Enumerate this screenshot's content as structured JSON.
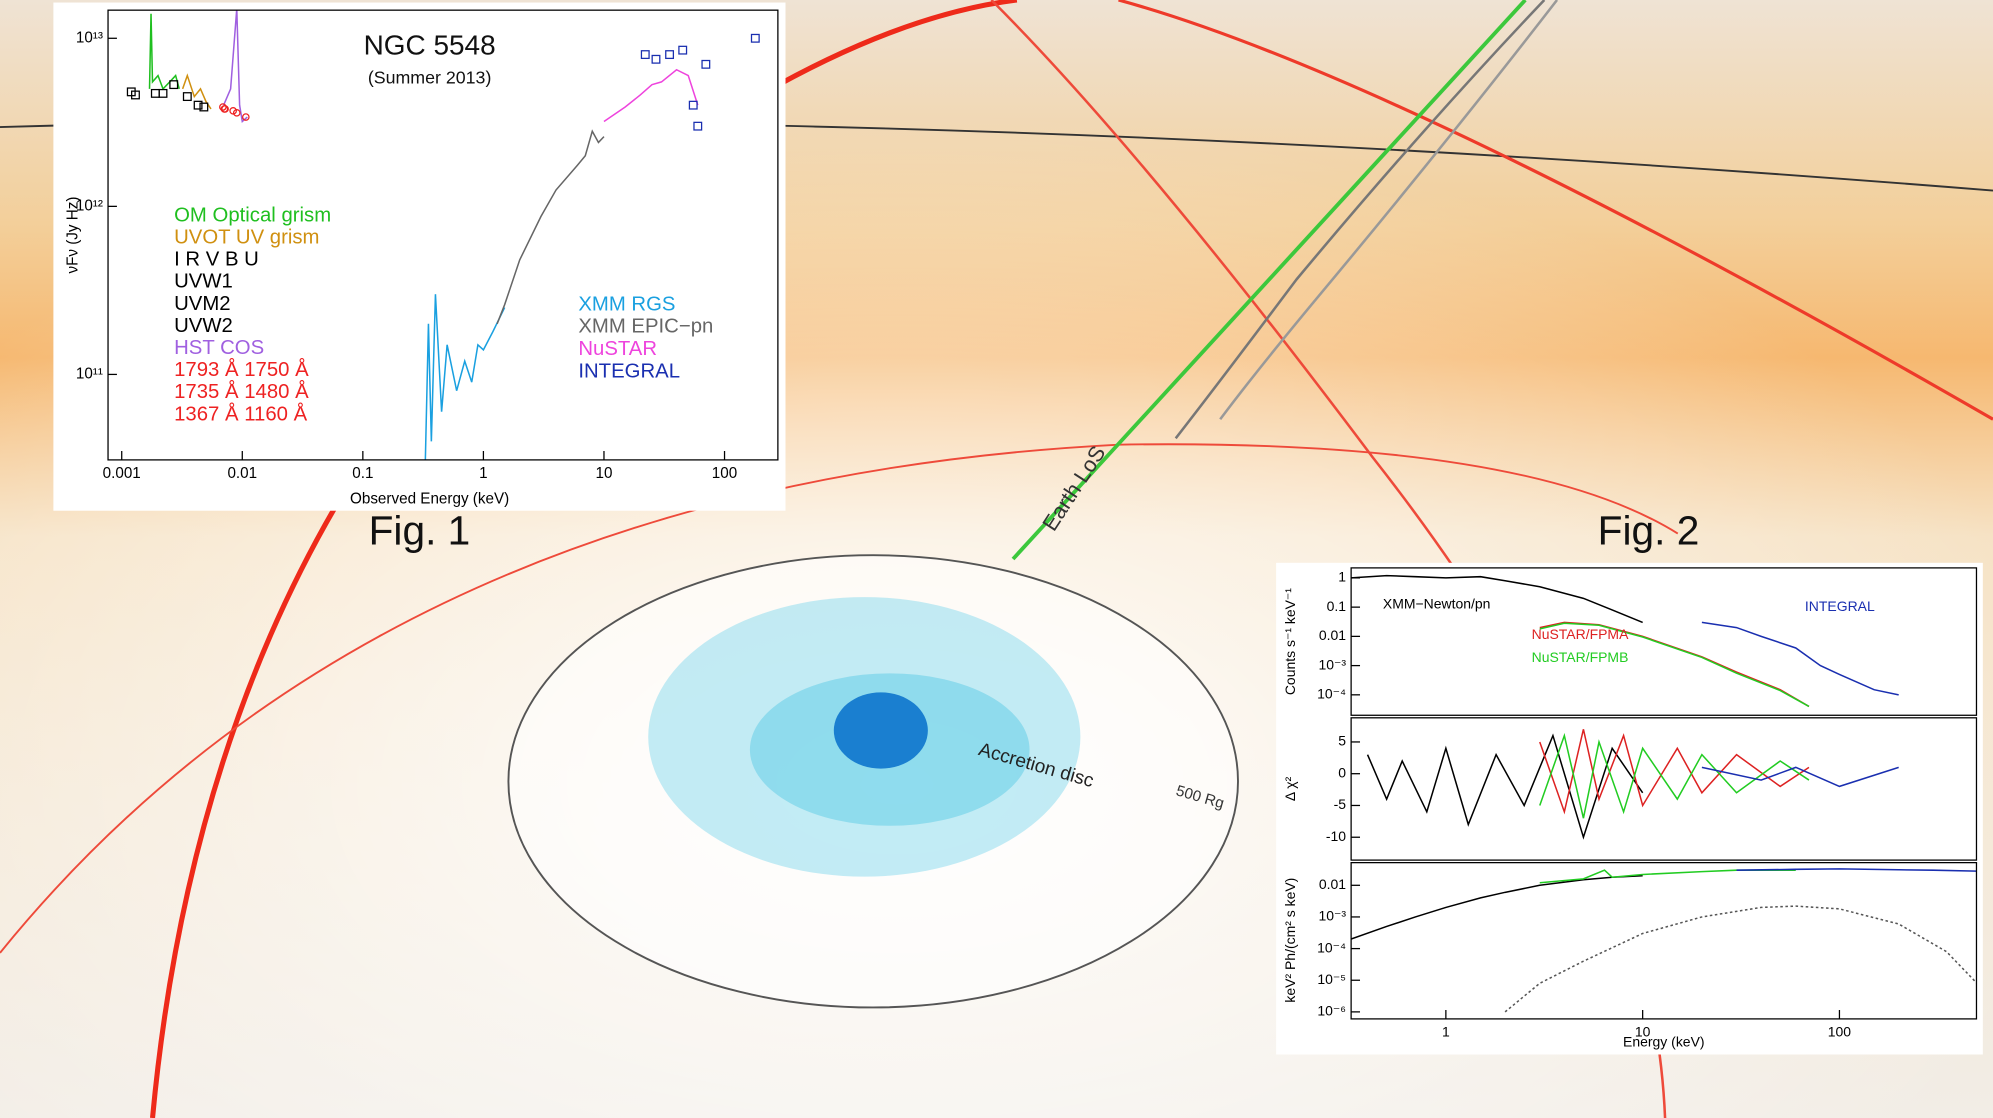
{
  "illustration": {
    "fig1_label": "Fig. 1",
    "fig2_label": "Fig. 2",
    "line_of_sight": "Earth LoS",
    "disc_label": "Accretion disc",
    "radius_label": "500 Rg"
  },
  "chart_data": [
    {
      "type": "line",
      "title": "NGC 5548",
      "subtitle": "(Summer 2013)",
      "x_label": "Observed Energy (keV)",
      "y_label": "νFν (Jy Hz)",
      "xscale": "log",
      "yscale": "log",
      "xlim": [
        0.00077,
        277
      ],
      "ylim": [
        31000000000,
        14700000000000
      ],
      "xticks": [
        0.001,
        0.01,
        0.1,
        1,
        10,
        100
      ],
      "yticks": [
        {
          "value": 100000000000,
          "label": "10¹¹"
        },
        {
          "value": 1000000000000,
          "label": "10¹²"
        },
        {
          "value": 10000000000000,
          "label": "10¹³"
        }
      ],
      "series": [
        {
          "name": "OM Optical grism",
          "color": "#1fbf1f",
          "x": [
            0.0017,
            0.00175,
            0.0018,
            0.002,
            0.0022,
            0.0025,
            0.0028,
            0.003
          ],
          "values": [
            5000000000000,
            14000000000000,
            5500000000000,
            6000000000000,
            5000000000000,
            5500000000000,
            6000000000000,
            5000000000000
          ]
        },
        {
          "name": "UVOT UV grism",
          "color": "#d09010",
          "x": [
            0.0032,
            0.0035,
            0.004,
            0.0045,
            0.005,
            0.0055
          ],
          "values": [
            5000000000000,
            6000000000000,
            4500000000000,
            5000000000000,
            4200000000000,
            3800000000000
          ]
        },
        {
          "name": "I R V B U",
          "color": "#000000",
          "marker": "square",
          "x": [
            0.0012,
            0.0013,
            0.0019,
            0.0022,
            0.0027
          ],
          "values": [
            4800000000000,
            4600000000000,
            4700000000000,
            4700000000000,
            5300000000000
          ]
        },
        {
          "name": "UVW1",
          "color": "#000000",
          "marker": "square",
          "x": [
            0.0035
          ],
          "values": [
            4500000000000
          ]
        },
        {
          "name": "UVM2",
          "color": "#000000",
          "marker": "square",
          "x": [
            0.0043
          ],
          "values": [
            4000000000000
          ]
        },
        {
          "name": "UVW2",
          "color": "#000000",
          "marker": "square",
          "x": [
            0.0048
          ],
          "values": [
            3900000000000
          ]
        },
        {
          "name": "HST COS",
          "color": "#a060e0",
          "x": [
            0.007,
            0.008,
            0.009,
            0.0095,
            0.01,
            0.011
          ],
          "values": [
            4000000000000,
            5000000000000,
            15000000000000,
            4000000000000,
            3200000000000,
            3400000000000
          ]
        },
        {
          "name": "1793 Å 1750 Å",
          "color": "#ee2222",
          "marker": "circle",
          "x": [
            0.0069,
            0.0071
          ],
          "values": [
            3900000000000,
            3800000000000
          ]
        },
        {
          "name": "1735 Å 1480 Å",
          "color": "#ee2222",
          "marker": "circle",
          "x": [
            0.0072,
            0.0084
          ],
          "values": [
            3800000000000,
            3700000000000
          ]
        },
        {
          "name": "1367 Å 1160 Å",
          "color": "#ee2222",
          "marker": "circle",
          "x": [
            0.009,
            0.0107
          ],
          "values": [
            3600000000000,
            3400000000000
          ]
        },
        {
          "name": "XMM RGS",
          "color": "#1aa0e0",
          "x": [
            0.33,
            0.35,
            0.37,
            0.4,
            0.45,
            0.5,
            0.6,
            0.7,
            0.8,
            0.9,
            1,
            1.2,
            1.5
          ],
          "values": [
            31000000000,
            200000000000,
            40000000000,
            300000000000,
            60000000000,
            150000000000,
            80000000000,
            120000000000,
            90000000000,
            150000000000,
            140000000000,
            180000000000,
            250000000000
          ]
        },
        {
          "name": "XMM EPIC−pn",
          "color": "#666666",
          "x": [
            1.3,
            1.5,
            2,
            3,
            4,
            6,
            7,
            8,
            9,
            10
          ],
          "values": [
            200000000000,
            260000000000,
            480000000000,
            870000000000,
            1250000000000,
            1750000000000,
            2000000000000,
            2800000000000,
            2400000000000,
            2600000000000
          ]
        },
        {
          "name": "NuSTAR",
          "color": "#ee44dd",
          "x": [
            10,
            15,
            20,
            25,
            30,
            40,
            50,
            60
          ],
          "values": [
            3200000000000,
            3900000000000,
            4600000000000,
            5300000000000,
            5500000000000,
            6500000000000,
            6000000000000,
            4000000000000
          ]
        },
        {
          "name": "INTEGRAL",
          "color": "#1a2fb0",
          "marker": "square",
          "x": [
            22,
            27,
            35,
            45,
            55,
            60,
            70,
            180
          ],
          "values": [
            8000000000000,
            7500000000000,
            8000000000000,
            8500000000000,
            4000000000000,
            3000000000000,
            7000000000000,
            10000000000000
          ]
        }
      ]
    },
    {
      "type": "line",
      "y_label": "Counts s⁻¹ keV⁻¹",
      "xscale": "log",
      "yscale": "log",
      "xlim": [
        0.33,
        497
      ],
      "ylim": [
        2e-05,
        2.2
      ],
      "yticks": [
        {
          "value": 0.0001,
          "label": "10⁻⁴"
        },
        {
          "value": 0.001,
          "label": "10⁻³"
        },
        0.01,
        0.1,
        1
      ],
      "series": [
        {
          "name": "XMM−Newton/pn",
          "color": "#000000",
          "x": [
            0.33,
            0.5,
            0.7,
            1,
            1.5,
            2,
            3,
            5,
            7,
            10
          ],
          "values": [
            1,
            1.2,
            1.1,
            1,
            1.1,
            0.8,
            0.5,
            0.2,
            0.08,
            0.03
          ]
        },
        {
          "name": "NuSTAR/FPMA",
          "color": "#dd2222",
          "x": [
            3,
            4,
            6,
            10,
            20,
            30,
            50,
            70
          ],
          "values": [
            0.02,
            0.03,
            0.025,
            0.01,
            0.002,
            0.0006,
            0.00015,
            4e-05
          ]
        },
        {
          "name": "NuSTAR/FPMB",
          "color": "#22cc22",
          "x": [
            3,
            4,
            6,
            10,
            20,
            30,
            50,
            70
          ],
          "values": [
            0.018,
            0.028,
            0.024,
            0.0095,
            0.0019,
            0.00055,
            0.00014,
            4e-05
          ]
        },
        {
          "name": "INTEGRAL",
          "color": "#1a2fb0",
          "x": [
            20,
            30,
            40,
            60,
            80,
            100,
            150,
            200
          ],
          "values": [
            0.03,
            0.02,
            0.01,
            0.004,
            0.001,
            0.0005,
            0.00015,
            0.0001
          ]
        }
      ]
    },
    {
      "type": "line",
      "y_label": "Δ χ²",
      "xscale": "log",
      "xlim": [
        0.33,
        497
      ],
      "ylim": [
        -13.6,
        8.8
      ],
      "yticks": [
        -10,
        -5,
        0,
        5
      ],
      "series": [
        {
          "color": "#000000",
          "x": [
            0.4,
            0.5,
            0.6,
            0.8,
            1,
            1.3,
            1.8,
            2.5,
            3.5,
            5,
            7,
            10
          ],
          "values": [
            3,
            -4,
            2,
            -6,
            4,
            -8,
            3,
            -5,
            6,
            -10,
            4,
            -3
          ]
        },
        {
          "color": "#dd2222",
          "x": [
            3,
            4,
            5,
            6,
            8,
            10,
            15,
            20,
            30,
            50,
            70
          ],
          "values": [
            5,
            -6,
            7,
            -4,
            6,
            -5,
            4,
            -3,
            3,
            -2,
            1
          ]
        },
        {
          "color": "#22cc22",
          "x": [
            3,
            4,
            5,
            6,
            8,
            10,
            15,
            20,
            30,
            50,
            70
          ],
          "values": [
            -5,
            6,
            -7,
            5,
            -6,
            4,
            -4,
            3,
            -3,
            2,
            -1
          ]
        },
        {
          "color": "#1a2fb0",
          "x": [
            20,
            40,
            60,
            100,
            200
          ],
          "values": [
            1,
            -1,
            1,
            -2,
            1
          ]
        }
      ]
    },
    {
      "type": "line",
      "x_label": "Energy (keV)",
      "y_label": "keV² Ph/(cm² s keV)",
      "xscale": "log",
      "yscale": "log",
      "xlim": [
        0.33,
        497
      ],
      "ylim": [
        6e-07,
        0.052
      ],
      "xticks": [
        1,
        10,
        100
      ],
      "yticks": [
        {
          "value": 1e-06,
          "label": "10⁻⁶"
        },
        {
          "value": 1e-05,
          "label": "10⁻⁵"
        },
        {
          "value": 0.0001,
          "label": "10⁻⁴"
        },
        {
          "value": 0.001,
          "label": "10⁻³"
        },
        0.01
      ],
      "series": [
        {
          "color": "#000000",
          "x": [
            0.33,
            0.5,
            0.7,
            1,
            1.5,
            2,
            3,
            5,
            7,
            10
          ],
          "values": [
            0.0002,
            0.0005,
            0.001,
            0.002,
            0.004,
            0.006,
            0.01,
            0.015,
            0.018,
            0.02
          ]
        },
        {
          "color": "#22cc22",
          "x": [
            3,
            5,
            6.4,
            7,
            10,
            20,
            30,
            60
          ],
          "values": [
            0.012,
            0.016,
            0.03,
            0.018,
            0.022,
            0.027,
            0.03,
            0.03
          ]
        },
        {
          "color": "#1a2fb0",
          "x": [
            30,
            60,
            100,
            200,
            300,
            500
          ],
          "values": [
            0.03,
            0.032,
            0.033,
            0.031,
            0.03,
            0.028
          ]
        },
        {
          "color": "#555555",
          "dashed": true,
          "x": [
            2,
            3,
            5,
            10,
            20,
            40,
            60,
            100,
            200,
            350,
            500
          ],
          "values": [
            1e-06,
            8e-06,
            4e-05,
            0.0003,
            0.001,
            0.002,
            0.0022,
            0.0018,
            0.0006,
            8e-05,
            8e-06
          ]
        }
      ]
    }
  ]
}
